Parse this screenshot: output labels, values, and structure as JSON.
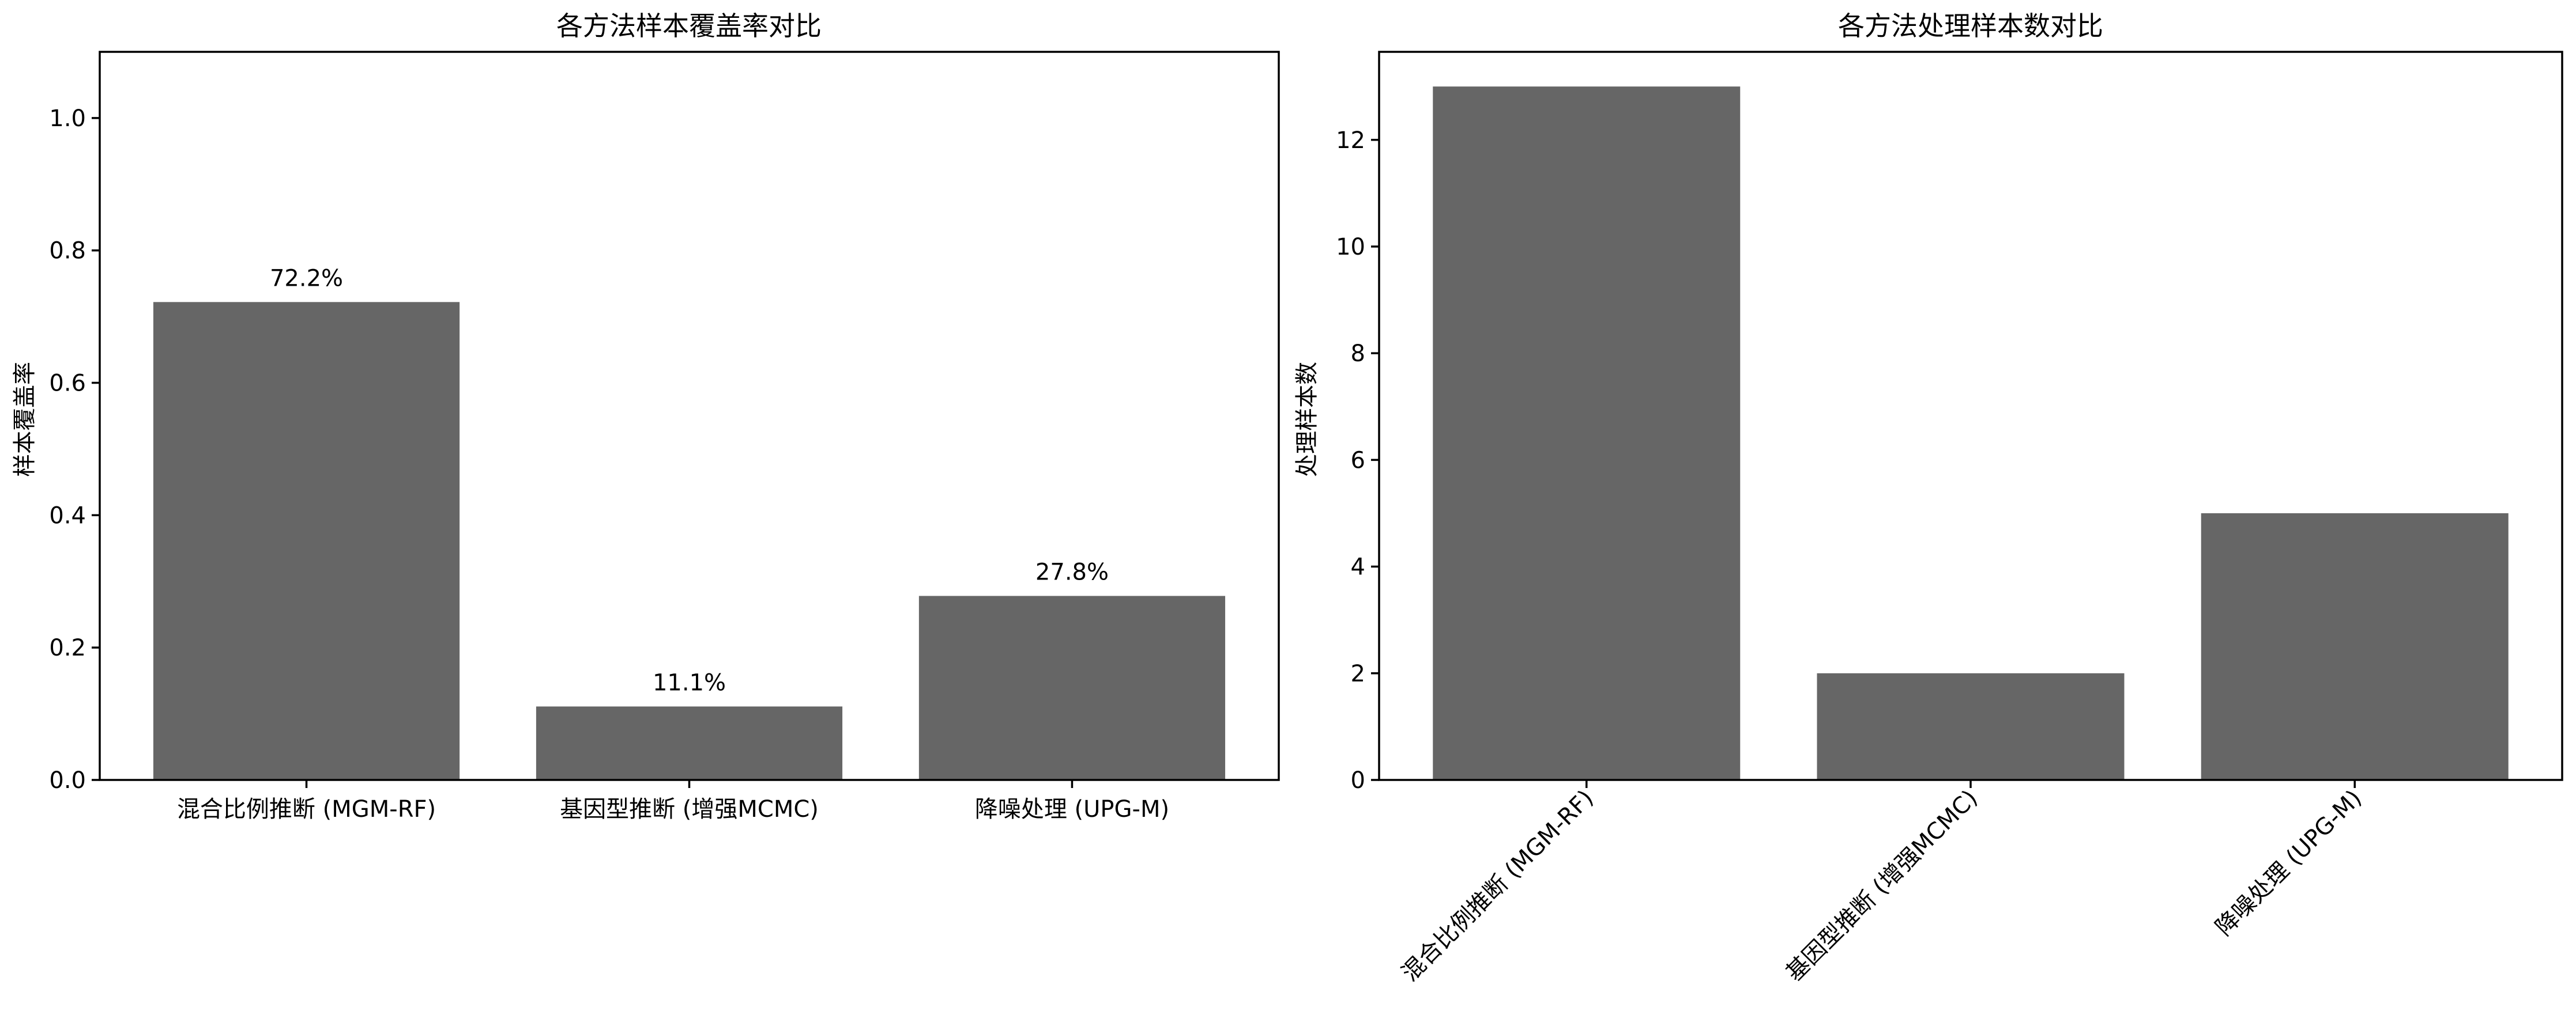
{
  "chart_data": [
    {
      "type": "bar",
      "title": "各方法样本覆盖率对比",
      "xlabel": "",
      "ylabel": "样本覆盖率",
      "categories": [
        "混合比例推断 (MGM-RF)",
        "基因型推断 (增强MCMC)",
        "降噪处理 (UPG-M)"
      ],
      "values": [
        0.722,
        0.111,
        0.278
      ],
      "data_labels": [
        "72.2%",
        "11.1%",
        "27.8%"
      ],
      "ylim": [
        0,
        1.1
      ],
      "yticks": [
        0.0,
        0.2,
        0.4,
        0.6,
        0.8,
        1.0
      ],
      "ytick_labels": [
        "0.0",
        "0.2",
        "0.4",
        "0.6",
        "0.8",
        "1.0"
      ],
      "grid": false,
      "colors": {
        "bar": "#666666"
      }
    },
    {
      "type": "bar",
      "title": "各方法处理样本数对比",
      "xlabel": "",
      "ylabel": "处理样本数",
      "categories": [
        "混合比例推断 (MGM-RF)",
        "基因型推断 (增强MCMC)",
        "降噪处理 (UPG-M)"
      ],
      "values": [
        13,
        2,
        5
      ],
      "ylim": [
        0,
        13.65
      ],
      "yticks": [
        0,
        2,
        4,
        6,
        8,
        10,
        12
      ],
      "ytick_labels": [
        "0",
        "2",
        "4",
        "6",
        "8",
        "10",
        "12"
      ],
      "xtick_rotation": 45,
      "grid": false,
      "colors": {
        "bar": "#666666"
      }
    }
  ]
}
